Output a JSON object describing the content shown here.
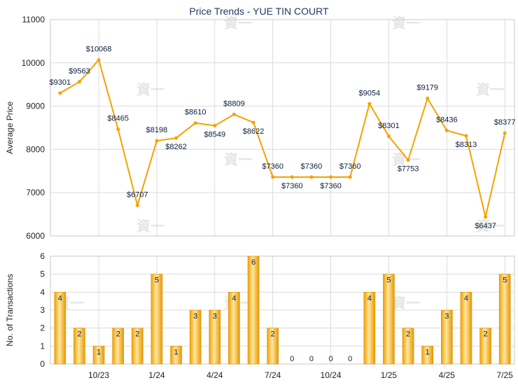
{
  "chart_data": [
    {
      "type": "line",
      "title": "Price Trends - YUE TIN COURT",
      "ylabel": "Average Price",
      "ylim": [
        6000,
        11000
      ],
      "yticks": [
        6000,
        7000,
        8000,
        9000,
        10000,
        11000
      ],
      "x_tick_labels": [
        {
          "index": 2,
          "label": "10/23"
        },
        {
          "index": 5,
          "label": "1/24"
        },
        {
          "index": 8,
          "label": "4/24"
        },
        {
          "index": 11,
          "label": "7/24"
        },
        {
          "index": 14,
          "label": "10/24"
        },
        {
          "index": 17,
          "label": "1/25"
        },
        {
          "index": 20,
          "label": "4/25"
        },
        {
          "index": 23,
          "label": "7/25"
        }
      ],
      "values": [
        9301,
        9563,
        10068,
        8465,
        6707,
        8198,
        8262,
        8610,
        8549,
        8809,
        8622,
        7360,
        7360,
        7360,
        7360,
        7360,
        9054,
        8301,
        7753,
        9179,
        8436,
        8313,
        6437,
        8377
      ],
      "labels": [
        "$9301",
        "$9563",
        "$10068",
        "$8465",
        "$6707",
        "$8198",
        "$8262",
        "$8610",
        "$8549",
        "$8809",
        "$8622",
        "$7360",
        "$7360",
        "$7360",
        "$7360",
        "$7360",
        "$9054",
        "$8301",
        "$7753",
        "$9179",
        "$8436",
        "$8313",
        "$6437",
        "$8377"
      ],
      "color": "#f5a200",
      "grid": true
    },
    {
      "type": "bar",
      "ylabel": "No. of Transactions",
      "ylim": [
        0,
        6
      ],
      "yticks": [
        0,
        1,
        2,
        3,
        4,
        5,
        6
      ],
      "x_tick_labels": [
        {
          "index": 2,
          "label": "10/23"
        },
        {
          "index": 5,
          "label": "1/24"
        },
        {
          "index": 8,
          "label": "4/24"
        },
        {
          "index": 11,
          "label": "7/24"
        },
        {
          "index": 14,
          "label": "10/24"
        },
        {
          "index": 17,
          "label": "1/25"
        },
        {
          "index": 20,
          "label": "4/25"
        },
        {
          "index": 23,
          "label": "7/25"
        }
      ],
      "values": [
        4,
        2,
        1,
        2,
        2,
        5,
        1,
        3,
        3,
        4,
        6,
        2,
        0,
        0,
        0,
        0,
        4,
        5,
        2,
        1,
        3,
        4,
        2,
        5
      ],
      "color": "#f5a200",
      "grid": true
    }
  ]
}
